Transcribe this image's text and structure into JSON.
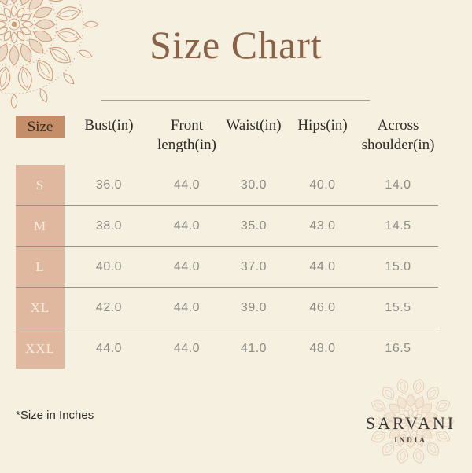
{
  "title": "Size Chart",
  "table": {
    "size_column_header": "Size",
    "columns": [
      "Bust(in)",
      "Front length(in)",
      "Waist(in)",
      "Hips(in)",
      "Across shoulder(in)"
    ],
    "rows": [
      {
        "size": "S",
        "values": [
          "36.0",
          "44.0",
          "30.0",
          "40.0",
          "14.0"
        ]
      },
      {
        "size": "M",
        "values": [
          "38.0",
          "44.0",
          "35.0",
          "43.0",
          "14.5"
        ]
      },
      {
        "size": "L",
        "values": [
          "40.0",
          "44.0",
          "37.0",
          "44.0",
          "15.0"
        ]
      },
      {
        "size": "XL",
        "values": [
          "42.0",
          "44.0",
          "39.0",
          "46.0",
          "15.5"
        ]
      },
      {
        "size": "XXL",
        "values": [
          "44.0",
          "44.0",
          "41.0",
          "48.0",
          "16.5"
        ]
      }
    ]
  },
  "footnote": "*Size in Inches",
  "brand": {
    "name": "SARVANI",
    "sub": "INDIA"
  },
  "colors": {
    "background": "#f6f0e1",
    "title_brown": "#8a6248",
    "size_header_box": "#c48e69",
    "size_row_strip": "#dfb89f",
    "row_label_text": "#f8eedd",
    "value_text": "#8c8c85",
    "divider": "#97938a",
    "mandala_accent": "#cc9b78",
    "logo_mandala": "#e7cfb4"
  }
}
